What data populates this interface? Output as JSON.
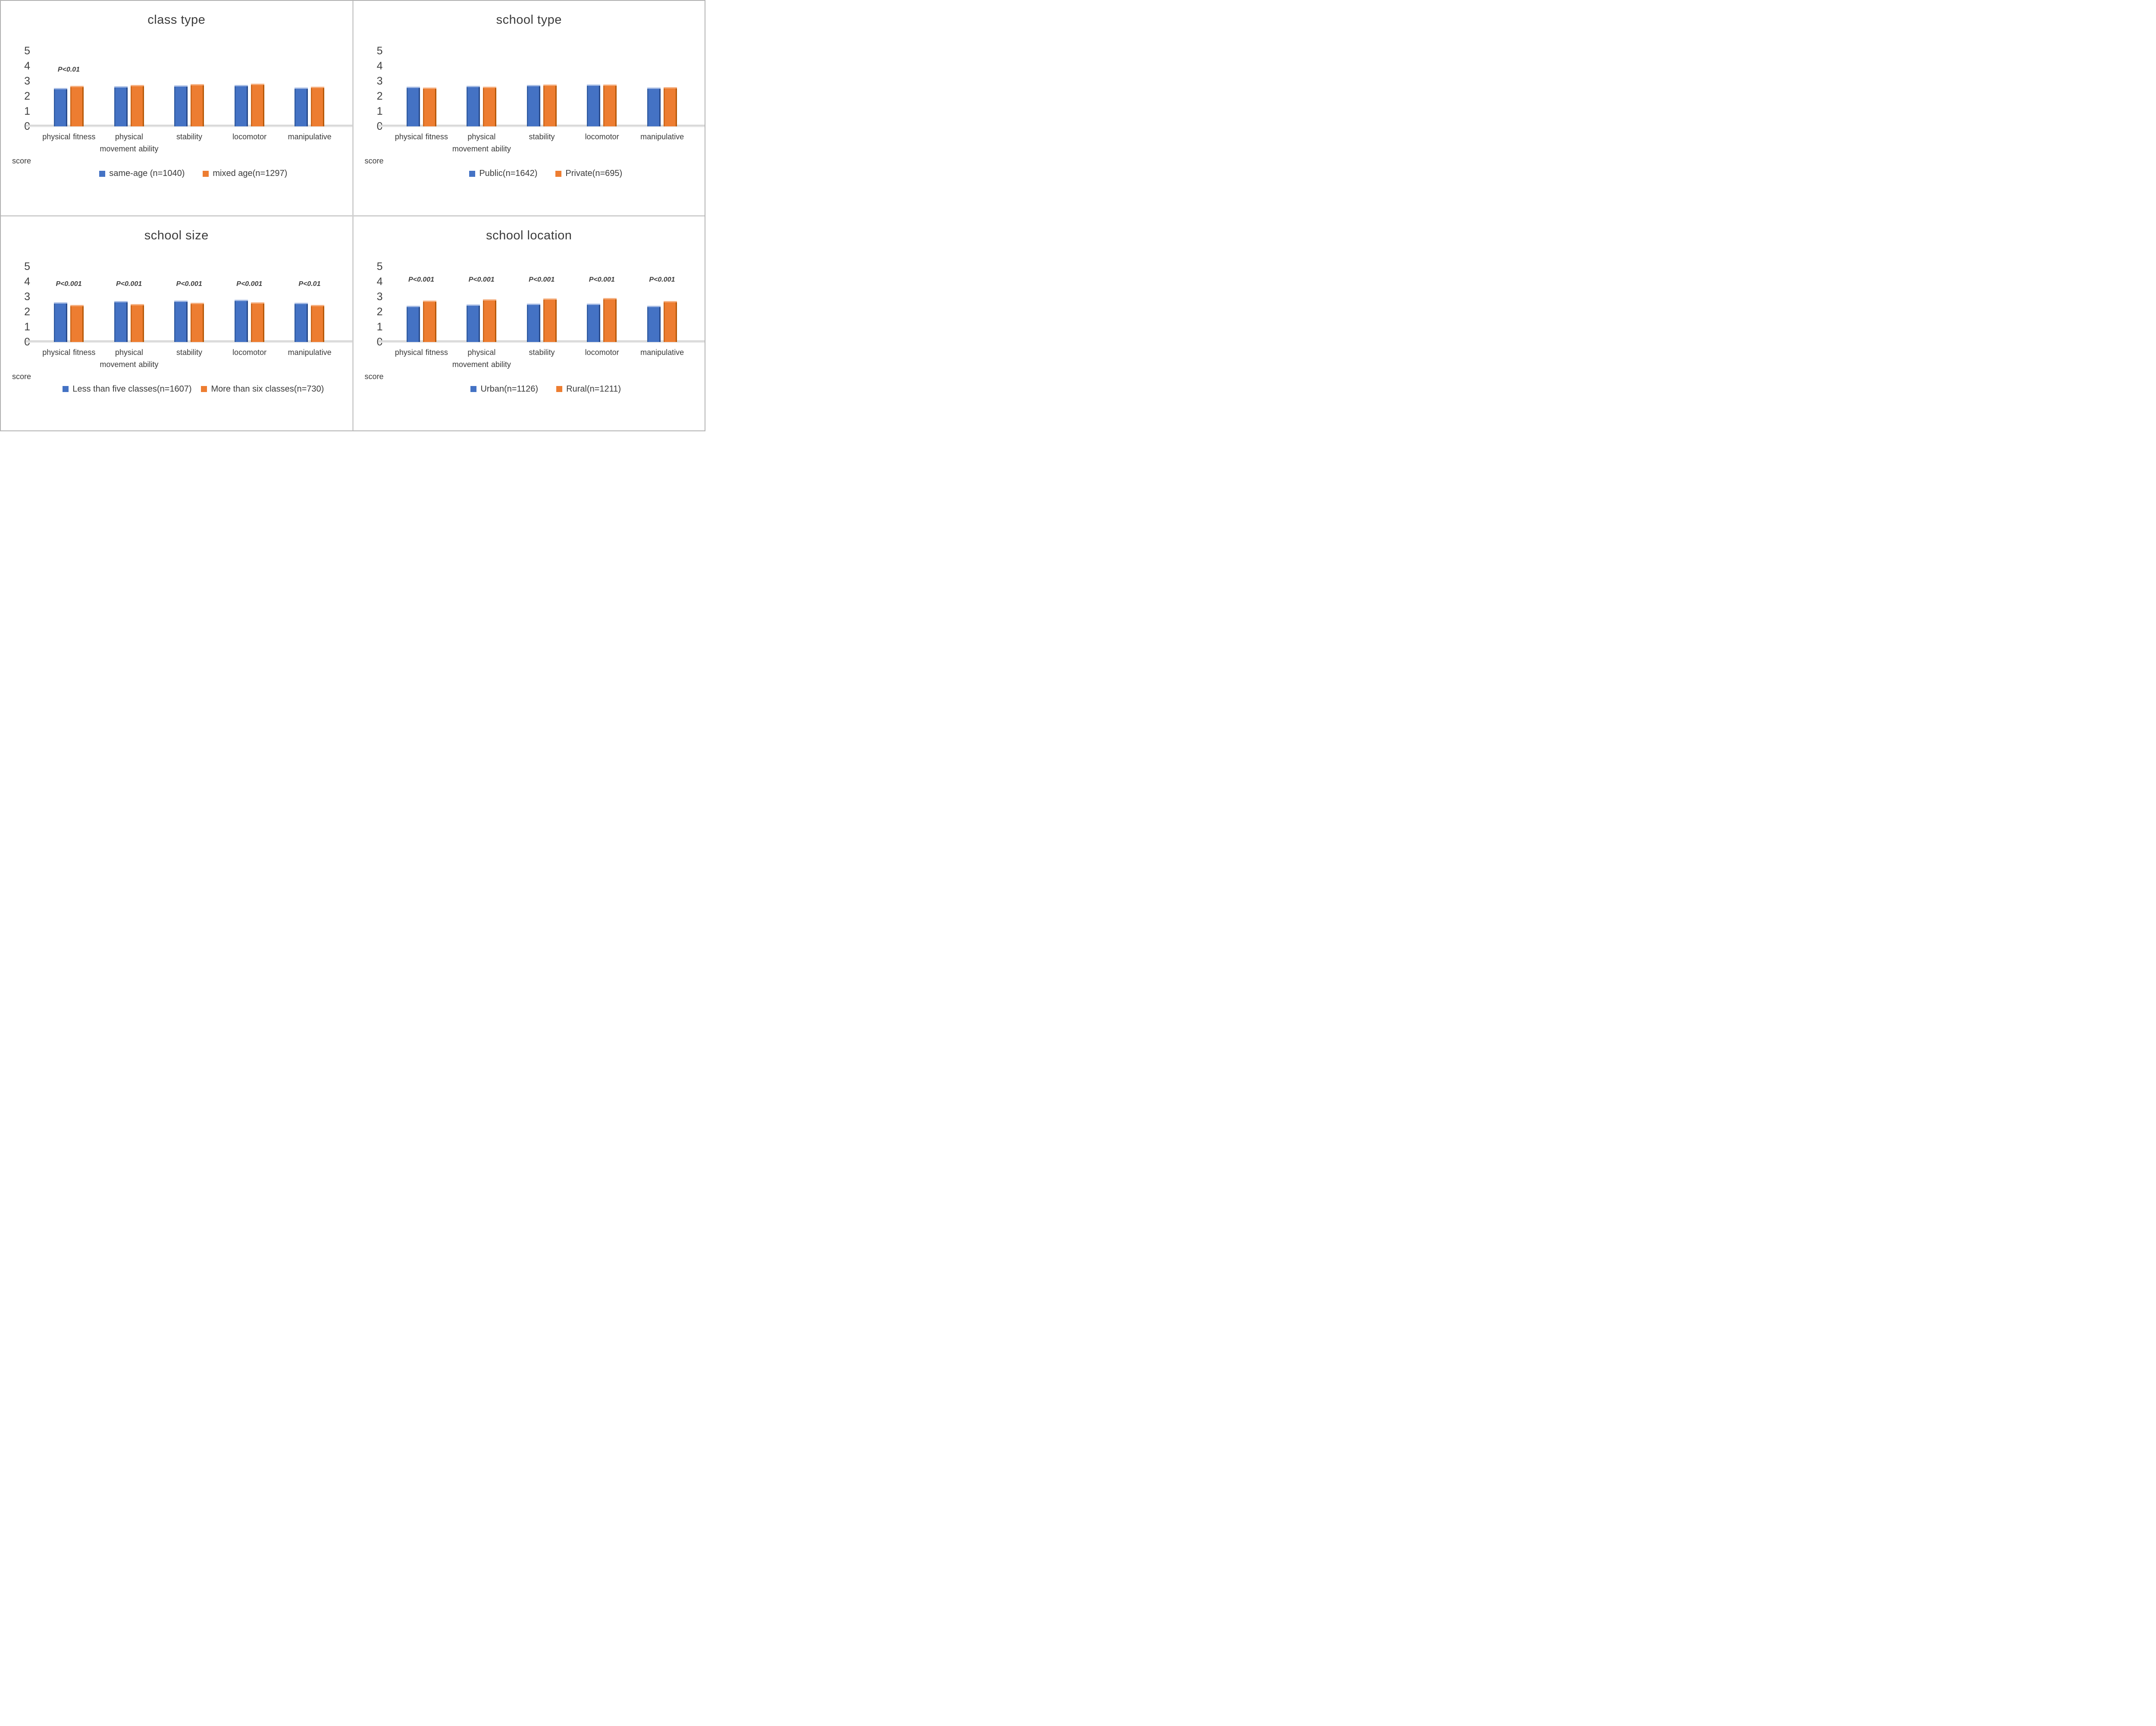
{
  "figure_title": "",
  "ylabel": "score",
  "colors": {
    "series1": "#4472C4",
    "series2": "#ED7D31",
    "axis": "#D9D9D9",
    "text": "#3A3A3A"
  },
  "chart_data": [
    {
      "type": "bar",
      "title": "class type",
      "ylabel": "score",
      "ylim": [
        0,
        5
      ],
      "yticks": [
        0,
        1,
        2,
        3,
        4,
        5
      ],
      "grid": false,
      "legend_position": "bottom",
      "categories": [
        "physical fitness",
        "physical movement ability",
        "stability",
        "locomotor",
        "manipulative"
      ],
      "series": [
        {
          "name": "same-age (n=1040)",
          "color": "#4472C4",
          "values": [
            2.55,
            2.65,
            2.72,
            2.74,
            2.56
          ]
        },
        {
          "name": "mixed age(n=1297)",
          "color": "#ED7D31",
          "values": [
            2.7,
            2.75,
            2.8,
            2.84,
            2.62
          ]
        }
      ],
      "p_annotations": [
        "P<0.01",
        "",
        "",
        "",
        ""
      ],
      "p_bottom_units": 3.5
    },
    {
      "type": "bar",
      "title": "school type",
      "ylabel": "score",
      "ylim": [
        0,
        5
      ],
      "yticks": [
        0,
        1,
        2,
        3,
        4,
        5
      ],
      "grid": false,
      "legend_position": "bottom",
      "categories": [
        "physical fitness",
        "physical movement ability",
        "stability",
        "locomotor",
        "manipulative"
      ],
      "series": [
        {
          "name": "Public(n=1642)",
          "color": "#4472C4",
          "values": [
            2.63,
            2.68,
            2.74,
            2.78,
            2.57
          ]
        },
        {
          "name": "Private(n=695)",
          "color": "#ED7D31",
          "values": [
            2.56,
            2.63,
            2.77,
            2.77,
            2.6
          ]
        }
      ],
      "p_annotations": [
        "",
        "",
        "",
        "",
        ""
      ],
      "p_bottom_units": 3.5
    },
    {
      "type": "bar",
      "title": "school size",
      "ylabel": "score",
      "ylim": [
        0,
        5
      ],
      "yticks": [
        0,
        1,
        2,
        3,
        4,
        5
      ],
      "grid": false,
      "legend_position": "bottom",
      "categories": [
        "physical fitness",
        "physical movement ability",
        "stability",
        "locomotor",
        "manipulative"
      ],
      "series": [
        {
          "name": "Less than five classes(n=1607)",
          "color": "#4472C4",
          "values": [
            2.62,
            2.7,
            2.74,
            2.78,
            2.59
          ]
        },
        {
          "name": "More than six classes(n=730)",
          "color": "#ED7D31",
          "values": [
            2.45,
            2.49,
            2.59,
            2.62,
            2.45
          ]
        }
      ],
      "p_annotations": [
        "P<0.001",
        "P<0.001",
        "P<0.001",
        "P<0.001",
        "P<0.01"
      ],
      "p_bottom_units": 3.55
    },
    {
      "type": "bar",
      "title": "school location",
      "ylabel": "score",
      "ylim": [
        0,
        5
      ],
      "yticks": [
        0,
        1,
        2,
        3,
        4,
        5
      ],
      "grid": false,
      "legend_position": "bottom",
      "categories": [
        "physical fitness",
        "physical movement ability",
        "stability",
        "locomotor",
        "manipulative"
      ],
      "series": [
        {
          "name": "Urban(n=1126)",
          "color": "#4472C4",
          "values": [
            2.4,
            2.46,
            2.54,
            2.54,
            2.38
          ]
        },
        {
          "name": "Rural(n=1211)",
          "color": "#ED7D31",
          "values": [
            2.73,
            2.81,
            2.87,
            2.91,
            2.7
          ]
        }
      ],
      "p_annotations": [
        "P<0.001",
        "P<0.001",
        "P<0.001",
        "P<0.001",
        "P<0.001"
      ],
      "p_bottom_units": 3.85
    }
  ]
}
